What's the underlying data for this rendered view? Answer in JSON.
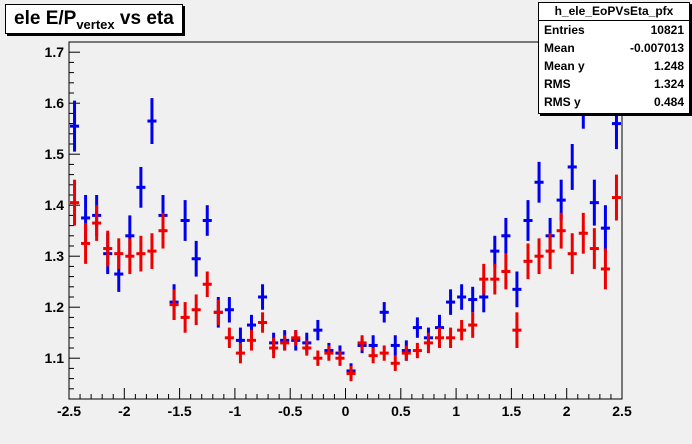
{
  "title": {
    "main": "ele E/P",
    "sub": "vertex",
    "suffix": " vs eta"
  },
  "stats": {
    "name": "h_ele_EoPVsEta_pfx",
    "rows": [
      {
        "label": "Entries",
        "value": "10821"
      },
      {
        "label": "Mean",
        "value": "-0.007013"
      },
      {
        "label": "Mean y",
        "value": "1.248"
      },
      {
        "label": "RMS",
        "value": "1.324"
      },
      {
        "label": "RMS y",
        "value": "0.484"
      }
    ]
  },
  "chart_data": {
    "type": "scatter",
    "title": "ele E/P_vertex vs eta",
    "xlim": [
      -2.5,
      2.5
    ],
    "ylim": [
      1.02,
      1.72
    ],
    "x_ticks": [
      "-2.5",
      "-2",
      "-1.5",
      "-1",
      "-0.5",
      "0",
      "0.5",
      "1",
      "1.5",
      "2",
      "2.5"
    ],
    "y_ticks": [
      "1.1",
      "1.2",
      "1.3",
      "1.4",
      "1.5",
      "1.6",
      "1.7"
    ],
    "grid": false,
    "bin_width": 0.1,
    "series": [
      {
        "color": "#0000ee",
        "x": [
          -2.45,
          -2.35,
          -2.25,
          -2.15,
          -2.05,
          -1.95,
          -1.85,
          -1.75,
          -1.65,
          -1.55,
          -1.45,
          -1.35,
          -1.25,
          -1.15,
          -1.05,
          -0.95,
          -0.85,
          -0.75,
          -0.65,
          -0.55,
          -0.45,
          -0.35,
          -0.25,
          -0.15,
          -0.05,
          0.05,
          0.15,
          0.25,
          0.35,
          0.45,
          0.55,
          0.65,
          0.75,
          0.85,
          0.95,
          1.05,
          1.15,
          1.25,
          1.35,
          1.45,
          1.55,
          1.65,
          1.75,
          1.85,
          1.95,
          2.05,
          2.15,
          2.25,
          2.35,
          2.45
        ],
        "y": [
          1.555,
          1.375,
          1.38,
          1.305,
          1.265,
          1.34,
          1.435,
          1.565,
          1.38,
          1.21,
          1.37,
          1.295,
          1.37,
          1.19,
          1.195,
          1.135,
          1.165,
          1.22,
          1.13,
          1.135,
          1.135,
          1.13,
          1.155,
          1.115,
          1.11,
          1.075,
          1.125,
          1.125,
          1.19,
          1.125,
          1.115,
          1.16,
          1.14,
          1.16,
          1.21,
          1.22,
          1.215,
          1.22,
          1.31,
          1.34,
          1.235,
          1.37,
          1.445,
          1.34,
          1.41,
          1.475,
          1.6,
          1.405,
          1.355,
          1.56
        ],
        "err": [
          0.05,
          0.045,
          0.04,
          0.04,
          0.035,
          0.04,
          0.04,
          0.045,
          0.04,
          0.035,
          0.04,
          0.035,
          0.03,
          0.03,
          0.025,
          0.025,
          0.02,
          0.025,
          0.02,
          0.02,
          0.02,
          0.02,
          0.02,
          0.015,
          0.015,
          0.015,
          0.015,
          0.02,
          0.02,
          0.02,
          0.02,
          0.02,
          0.02,
          0.025,
          0.025,
          0.025,
          0.025,
          0.03,
          0.03,
          0.035,
          0.035,
          0.04,
          0.04,
          0.035,
          0.04,
          0.045,
          0.05,
          0.045,
          0.045,
          0.05
        ]
      },
      {
        "color": "#ee0000",
        "x": [
          -2.45,
          -2.35,
          -2.25,
          -2.15,
          -2.05,
          -1.95,
          -1.85,
          -1.75,
          -1.65,
          -1.55,
          -1.45,
          -1.35,
          -1.25,
          -1.15,
          -1.05,
          -0.95,
          -0.85,
          -0.75,
          -0.65,
          -0.55,
          -0.45,
          -0.35,
          -0.25,
          -0.15,
          -0.05,
          0.05,
          0.15,
          0.25,
          0.35,
          0.45,
          0.55,
          0.65,
          0.75,
          0.85,
          0.95,
          1.05,
          1.15,
          1.25,
          1.35,
          1.45,
          1.55,
          1.65,
          1.75,
          1.85,
          1.95,
          2.05,
          2.15,
          2.25,
          2.35,
          2.45
        ],
        "y": [
          1.405,
          1.325,
          1.365,
          1.315,
          1.305,
          1.3,
          1.305,
          1.31,
          1.35,
          1.205,
          1.18,
          1.195,
          1.245,
          1.19,
          1.14,
          1.11,
          1.135,
          1.17,
          1.12,
          1.13,
          1.14,
          1.12,
          1.1,
          1.11,
          1.1,
          1.07,
          1.13,
          1.105,
          1.11,
          1.09,
          1.11,
          1.115,
          1.13,
          1.14,
          1.14,
          1.155,
          1.165,
          1.255,
          1.255,
          1.27,
          1.155,
          1.29,
          1.3,
          1.31,
          1.35,
          1.305,
          1.345,
          1.315,
          1.275,
          1.415
        ],
        "err": [
          0.045,
          0.04,
          0.035,
          0.035,
          0.03,
          0.035,
          0.035,
          0.035,
          0.035,
          0.03,
          0.03,
          0.03,
          0.025,
          0.025,
          0.02,
          0.02,
          0.02,
          0.02,
          0.02,
          0.015,
          0.015,
          0.015,
          0.015,
          0.015,
          0.015,
          0.015,
          0.015,
          0.015,
          0.015,
          0.015,
          0.015,
          0.015,
          0.02,
          0.02,
          0.02,
          0.02,
          0.025,
          0.03,
          0.03,
          0.035,
          0.035,
          0.035,
          0.035,
          0.035,
          0.035,
          0.04,
          0.04,
          0.04,
          0.04,
          0.045
        ]
      }
    ]
  }
}
